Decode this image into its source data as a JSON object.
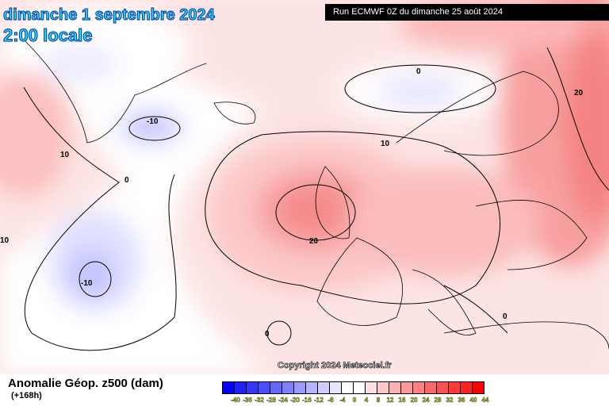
{
  "header": {
    "date": "dimanche 1 septembre 2024",
    "time": "2:00 locale",
    "run": "Run ECMWF 0Z du dimanche 25 août 2024"
  },
  "copyright": "Copyright 2024 Meteociel.fr",
  "footer": {
    "title": "Anomalie Géop. z500 (dam)",
    "lead": "(+168h)"
  },
  "legend": {
    "labels": [
      "-40",
      "-36",
      "-32",
      "-28",
      "-24",
      "-20",
      "-16",
      "-12",
      "-8",
      "-4",
      "0",
      "4",
      "8",
      "12",
      "16",
      "20",
      "24",
      "28",
      "32",
      "36",
      "40",
      "44"
    ],
    "colors": [
      "#0000ff",
      "#2020ff",
      "#3535ff",
      "#4b4bff",
      "#6565ff",
      "#7f7fff",
      "#9a9aff",
      "#b4b4ff",
      "#cfcfff",
      "#e6e6ff",
      "#ffffff",
      "#ffffff",
      "#ffe0e0",
      "#ffc8c8",
      "#ffb0b0",
      "#ff9898",
      "#ff8080",
      "#ff6868",
      "#ff5050",
      "#ff3838",
      "#ff2020",
      "#ff0000"
    ]
  },
  "contour_labels": [
    "0",
    "20",
    "-10",
    "10",
    "0",
    "-10",
    "10",
    "20",
    "0",
    "0",
    "10",
    "10"
  ]
}
